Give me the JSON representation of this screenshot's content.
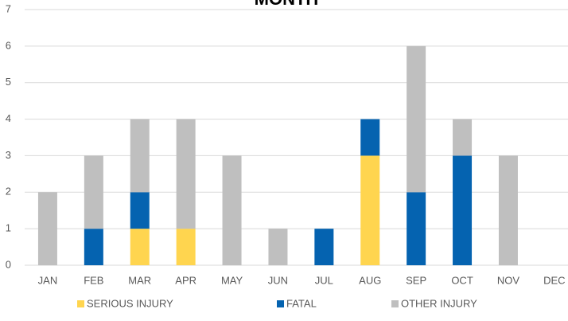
{
  "chart_data": {
    "type": "stacked_bar",
    "title": "MONTH",
    "categories": [
      "JAN",
      "FEB",
      "MAR",
      "APR",
      "MAY",
      "JUN",
      "JUL",
      "AUG",
      "SEP",
      "OCT",
      "NOV",
      "DEC"
    ],
    "series": [
      {
        "name": "SERIOUS INJURY",
        "color": "#ffd54f",
        "values": [
          0,
          0,
          1,
          1,
          0,
          0,
          0,
          3,
          0,
          0,
          0,
          0
        ]
      },
      {
        "name": "FATAL",
        "color": "#0563b0",
        "values": [
          0,
          1,
          1,
          0,
          0,
          0,
          1,
          1,
          2,
          3,
          0,
          0
        ]
      },
      {
        "name": "OTHER INJURY",
        "color": "#bfbfbf",
        "values": [
          2,
          2,
          2,
          3,
          3,
          1,
          0,
          0,
          4,
          1,
          3,
          0
        ]
      }
    ],
    "ylim": [
      0,
      7
    ],
    "yticks": [
      0,
      1,
      2,
      3,
      4,
      5,
      6,
      7
    ],
    "grid": true,
    "legend": "bottom"
  }
}
